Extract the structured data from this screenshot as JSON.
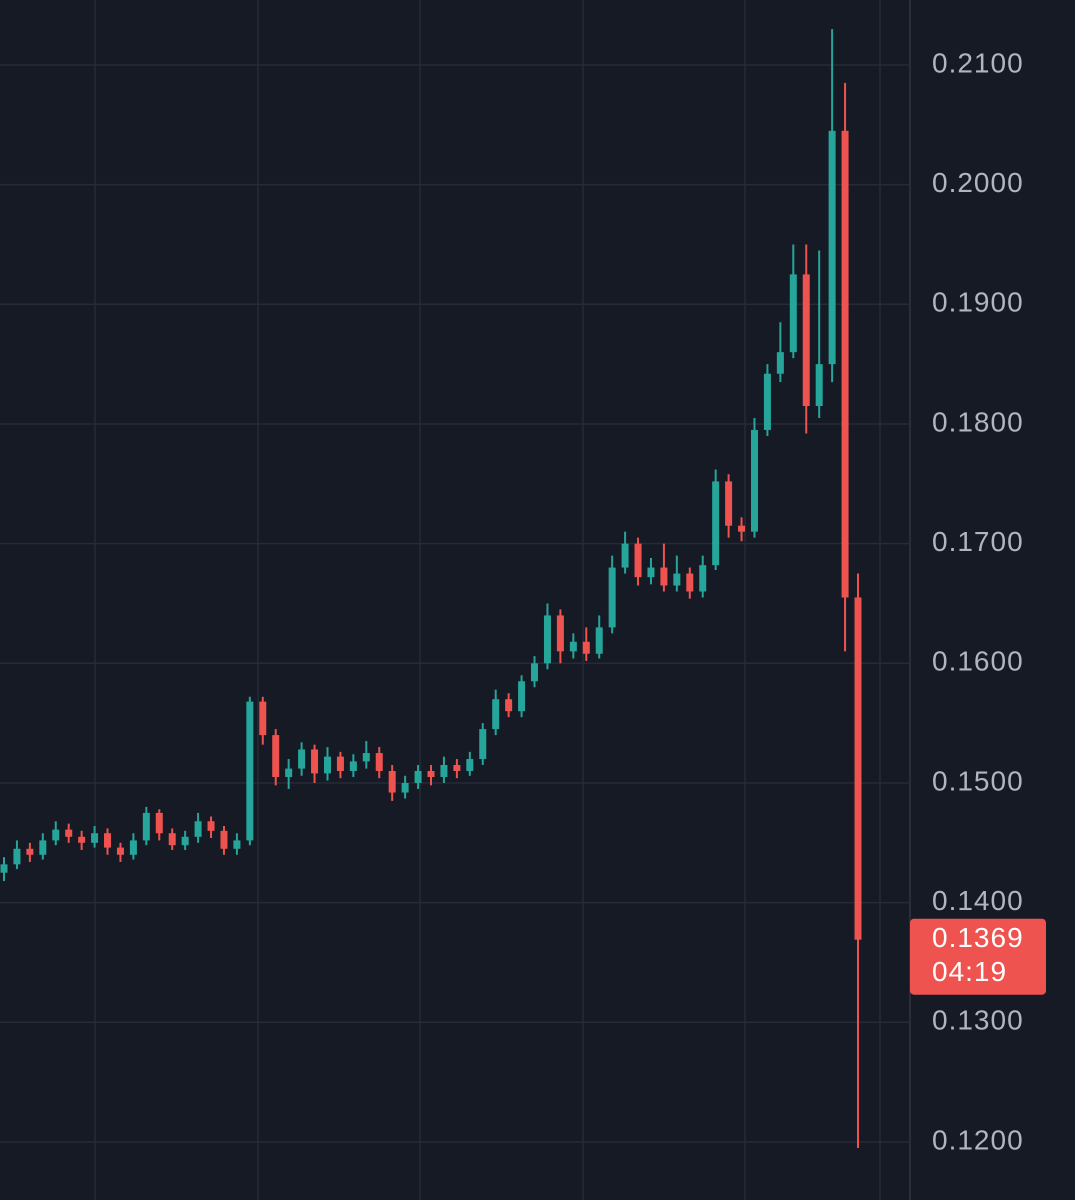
{
  "chart_data": {
    "type": "candlestick",
    "open": [
      0.1425,
      0.1432,
      0.1445,
      0.144,
      0.1452,
      0.1461,
      0.1455,
      0.145,
      0.1458,
      0.1446,
      0.144,
      0.1452,
      0.1475,
      0.1458,
      0.1448,
      0.1455,
      0.1468,
      0.146,
      0.1445,
      0.1452,
      0.1568,
      0.154,
      0.1505,
      0.1512,
      0.1528,
      0.1508,
      0.1522,
      0.151,
      0.1518,
      0.1525,
      0.151,
      0.1492,
      0.15,
      0.151,
      0.1505,
      0.1515,
      0.151,
      0.152,
      0.1545,
      0.157,
      0.156,
      0.1585,
      0.16,
      0.164,
      0.161,
      0.1618,
      0.1608,
      0.163,
      0.168,
      0.17,
      0.1672,
      0.168,
      0.1665,
      0.1675,
      0.166,
      0.1682,
      0.1752,
      0.1715,
      0.171,
      0.1795,
      0.1842,
      0.186,
      0.1925,
      0.1815,
      0.185,
      0.2045,
      0.1655
    ],
    "high": [
      0.1438,
      0.1452,
      0.145,
      0.1458,
      0.1468,
      0.1466,
      0.146,
      0.1464,
      0.1462,
      0.145,
      0.1458,
      0.148,
      0.1478,
      0.1462,
      0.146,
      0.1475,
      0.1472,
      0.1464,
      0.1458,
      0.1572,
      0.1572,
      0.1545,
      0.152,
      0.1534,
      0.1532,
      0.153,
      0.1526,
      0.1524,
      0.1535,
      0.153,
      0.1515,
      0.1506,
      0.1515,
      0.1515,
      0.1522,
      0.152,
      0.1526,
      0.155,
      0.1578,
      0.1575,
      0.159,
      0.1606,
      0.165,
      0.1645,
      0.1625,
      0.163,
      0.164,
      0.169,
      0.171,
      0.1705,
      0.1688,
      0.17,
      0.169,
      0.168,
      0.169,
      0.1762,
      0.1758,
      0.1722,
      0.1805,
      0.185,
      0.1885,
      0.195,
      0.195,
      0.1945,
      0.213,
      0.2085,
      0.1675
    ],
    "low": [
      0.1418,
      0.1428,
      0.1434,
      0.1436,
      0.1448,
      0.145,
      0.1444,
      0.1446,
      0.144,
      0.1434,
      0.1436,
      0.1448,
      0.1452,
      0.1444,
      0.1444,
      0.145,
      0.1454,
      0.144,
      0.144,
      0.1448,
      0.1532,
      0.1498,
      0.1495,
      0.1506,
      0.15,
      0.1502,
      0.1504,
      0.1505,
      0.1512,
      0.1504,
      0.1485,
      0.1487,
      0.1495,
      0.1498,
      0.15,
      0.1504,
      0.1506,
      0.1515,
      0.154,
      0.1555,
      0.1555,
      0.158,
      0.1595,
      0.16,
      0.1604,
      0.1602,
      0.1604,
      0.1625,
      0.1675,
      0.1665,
      0.1666,
      0.166,
      0.166,
      0.1654,
      0.1655,
      0.1678,
      0.1705,
      0.1702,
      0.1705,
      0.179,
      0.1835,
      0.1855,
      0.1792,
      0.1805,
      0.1835,
      0.161,
      0.1195
    ],
    "close": [
      0.1432,
      0.1445,
      0.144,
      0.1452,
      0.1461,
      0.1455,
      0.145,
      0.1458,
      0.1446,
      0.144,
      0.1452,
      0.1475,
      0.1458,
      0.1448,
      0.1455,
      0.1468,
      0.146,
      0.1445,
      0.1452,
      0.1568,
      0.154,
      0.1505,
      0.1512,
      0.1528,
      0.1508,
      0.1522,
      0.151,
      0.1518,
      0.1525,
      0.151,
      0.1492,
      0.15,
      0.151,
      0.1505,
      0.1515,
      0.151,
      0.152,
      0.1545,
      0.157,
      0.156,
      0.1585,
      0.16,
      0.164,
      0.161,
      0.1618,
      0.1608,
      0.163,
      0.168,
      0.17,
      0.1672,
      0.168,
      0.1665,
      0.1675,
      0.166,
      0.1682,
      0.1752,
      0.1715,
      0.171,
      0.1795,
      0.1842,
      0.186,
      0.1925,
      0.1815,
      0.185,
      0.2045,
      0.1655,
      0.1369
    ],
    "up_color": "#26a69a",
    "down_color": "#ef5350",
    "ylim": [
      0.11515,
      0.21543
    ],
    "yticks": [
      {
        "value": 0.12,
        "label": "0.1200"
      },
      {
        "value": 0.13,
        "label": "0.1300"
      },
      {
        "value": 0.14,
        "label": "0.1400"
      },
      {
        "value": 0.15,
        "label": "0.1500"
      },
      {
        "value": 0.16,
        "label": "0.1600"
      },
      {
        "value": 0.17,
        "label": "0.1700"
      },
      {
        "value": 0.18,
        "label": "0.1800"
      },
      {
        "value": 0.19,
        "label": "0.1900"
      },
      {
        "value": 0.2,
        "label": "0.2000"
      },
      {
        "value": 0.21,
        "label": "0.2100"
      }
    ],
    "grid": true,
    "last_price": 0.1369,
    "countdown": "04:19"
  }
}
